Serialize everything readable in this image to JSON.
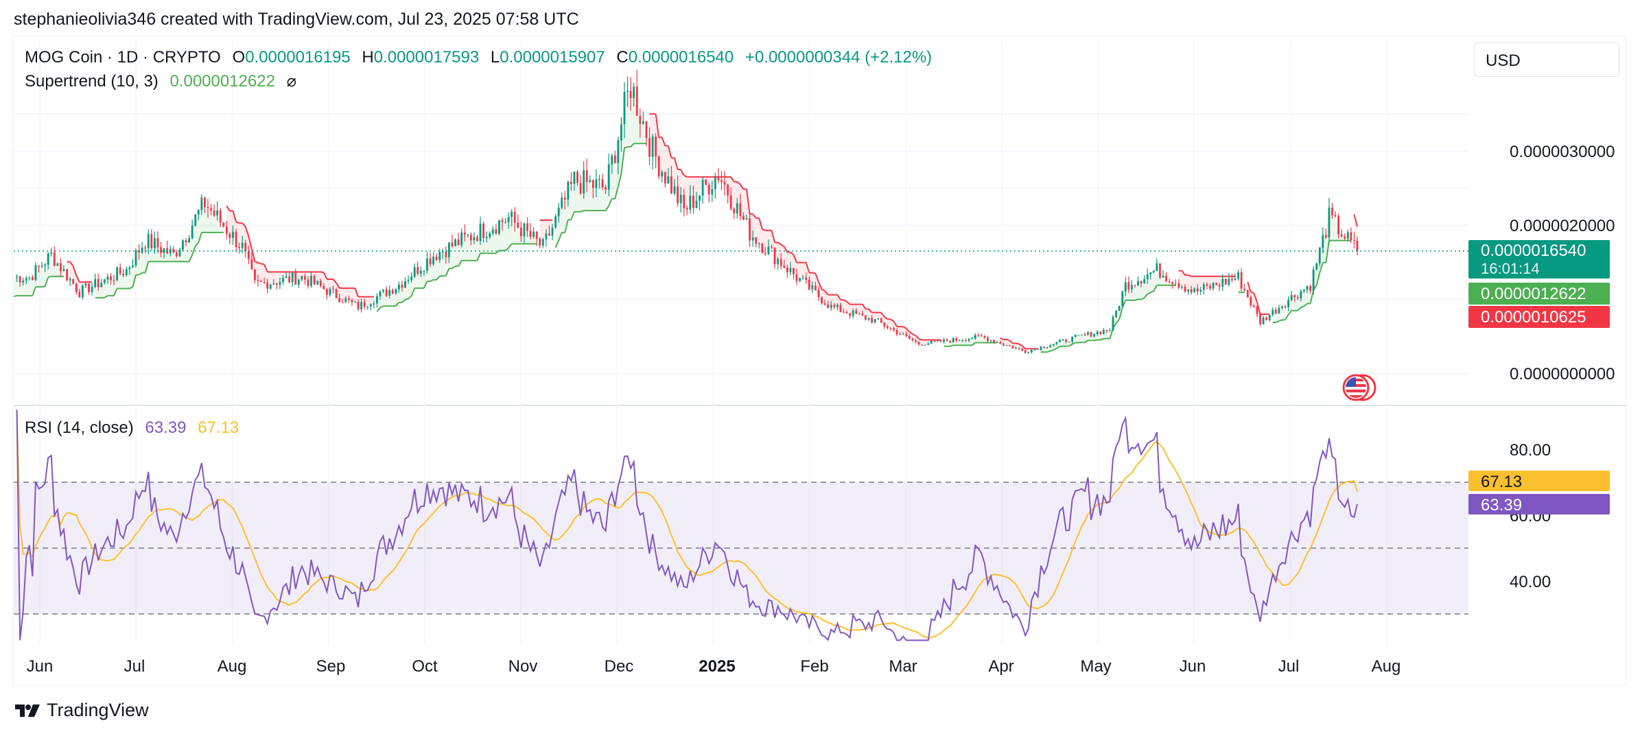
{
  "header": {
    "text": "stephanieolivia346 created with TradingView.com, Jul 23, 2025 07:58 UTC"
  },
  "legend": {
    "symbol": "MOG Coin · 1D · CRYPTO",
    "o_label": "O",
    "o": "0.0000016195",
    "h_label": "H",
    "h": "0.0000017593",
    "l_label": "L",
    "l": "0.0000015907",
    "c_label": "C",
    "c": "0.0000016540",
    "change": "+0.0000000344 (+2.12%)",
    "supertrend_label": "Supertrend (10, 3)",
    "supertrend_value": "0.0000012622",
    "hide_icon": "⌀"
  },
  "currency": "USD",
  "price_axis": {
    "labels": [
      "0.0000030000",
      "0.0000020000",
      "0.0000000000"
    ]
  },
  "price_tags": {
    "last": "0.0000016540",
    "countdown": "16:01:14",
    "supertrend_up": "0.0000012622",
    "supertrend_down": "0.0000010625"
  },
  "rsi": {
    "label": "RSI (14, close)",
    "value": "63.39",
    "ma_value": "67.13",
    "axis_labels": [
      "80.00",
      "60.00",
      "40.00"
    ],
    "tag_ma": "67.13",
    "tag_rsi": "63.39"
  },
  "x_axis": {
    "labels": [
      "Jun",
      "Jul",
      "Aug",
      "Sep",
      "Oct",
      "Nov",
      "Dec",
      "2025",
      "Feb",
      "Mar",
      "Apr",
      "May",
      "Jun",
      "Jul",
      "Aug"
    ]
  },
  "brand": {
    "logo_text": "TradingView"
  },
  "colors": {
    "up": "#089981",
    "down": "#f23645",
    "supertrend_up": "#4caf50",
    "supertrend_down": "#f23645",
    "rsi": "#7e57c2",
    "rsi_ma": "#fbc02d",
    "rsi_band": "#7e57c2"
  },
  "chart_data": [
    {
      "type": "candlestick",
      "title": "MOG Coin · 1D · CRYPTO",
      "ylim": [
        0,
        4e-06
      ],
      "y_ticks": [
        0,
        2e-06,
        3e-06
      ],
      "x_labels": [
        "Jun",
        "Jul",
        "Aug",
        "Sep",
        "Oct",
        "Nov",
        "Dec",
        "2025",
        "Feb",
        "Mar",
        "Apr",
        "May",
        "Jun",
        "Jul",
        "Aug"
      ],
      "approx_close_series": [
        {
          "date": "2024-05-25",
          "close": 1.3e-06
        },
        {
          "date": "2024-06-01",
          "close": 1.6e-06
        },
        {
          "date": "2024-06-10",
          "close": 1.1e-06
        },
        {
          "date": "2024-06-25",
          "close": 1.4e-06
        },
        {
          "date": "2024-07-01",
          "close": 1.8e-06
        },
        {
          "date": "2024-07-10",
          "close": 1.6e-06
        },
        {
          "date": "2024-07-20",
          "close": 2.3e-06
        },
        {
          "date": "2024-08-01",
          "close": 1.7e-06
        },
        {
          "date": "2024-08-05",
          "close": 1.2e-06
        },
        {
          "date": "2024-08-20",
          "close": 1.3e-06
        },
        {
          "date": "2024-09-07",
          "close": 9e-07
        },
        {
          "date": "2024-09-20",
          "close": 1.2e-06
        },
        {
          "date": "2024-10-01",
          "close": 1.6e-06
        },
        {
          "date": "2024-10-15",
          "close": 1.9e-06
        },
        {
          "date": "2024-10-25",
          "close": 2.1e-06
        },
        {
          "date": "2024-11-05",
          "close": 1.7e-06
        },
        {
          "date": "2024-11-15",
          "close": 2.6e-06
        },
        {
          "date": "2024-11-25",
          "close": 2.5e-06
        },
        {
          "date": "2024-12-03",
          "close": 3.9e-06
        },
        {
          "date": "2024-12-10",
          "close": 3e-06
        },
        {
          "date": "2024-12-20",
          "close": 2.2e-06
        },
        {
          "date": "2024-12-31",
          "close": 2.7e-06
        },
        {
          "date": "2025-01-10",
          "close": 1.9e-06
        },
        {
          "date": "2025-01-25",
          "close": 1.3e-06
        },
        {
          "date": "2025-02-05",
          "close": 9e-07
        },
        {
          "date": "2025-02-20",
          "close": 7e-07
        },
        {
          "date": "2025-03-05",
          "close": 4e-07
        },
        {
          "date": "2025-03-25",
          "close": 5e-07
        },
        {
          "date": "2025-04-08",
          "close": 3e-07
        },
        {
          "date": "2025-04-25",
          "close": 5e-07
        },
        {
          "date": "2025-05-05",
          "close": 6e-07
        },
        {
          "date": "2025-05-10",
          "close": 1.2e-06
        },
        {
          "date": "2025-05-20",
          "close": 1.4e-06
        },
        {
          "date": "2025-06-01",
          "close": 1.1e-06
        },
        {
          "date": "2025-06-15",
          "close": 1.3e-06
        },
        {
          "date": "2025-06-22",
          "close": 7e-07
        },
        {
          "date": "2025-07-01",
          "close": 1e-06
        },
        {
          "date": "2025-07-08",
          "close": 1.2e-06
        },
        {
          "date": "2025-07-14",
          "close": 2.1e-06
        },
        {
          "date": "2025-07-23",
          "close": 1.654e-06
        }
      ],
      "last_close": 1.654e-06,
      "supertrend": {
        "up_value": 1.2622e-06,
        "down_value": 1.0625e-06
      }
    },
    {
      "type": "line",
      "title": "RSI (14, close)",
      "ylim": [
        20,
        90
      ],
      "bands": [
        30,
        50,
        70
      ],
      "y_ticks": [
        40,
        60,
        80
      ],
      "series": [
        {
          "name": "RSI",
          "last": 63.39
        },
        {
          "name": "RSI MA",
          "last": 67.13
        }
      ]
    }
  ]
}
